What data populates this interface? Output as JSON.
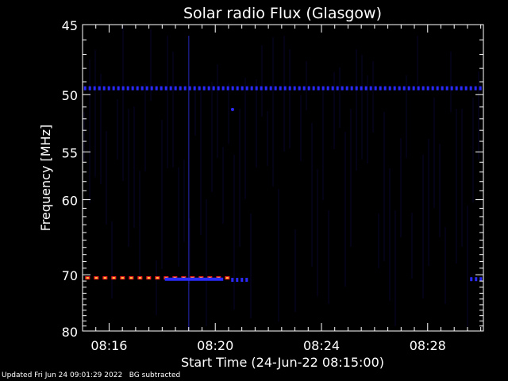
{
  "chart_data": {
    "type": "heatmap",
    "title": "Solar radio Flux (Glasgow)",
    "xlabel": "Start Time (24-Jun-22 08:15:00)",
    "ylabel": "Frequency [MHz]",
    "x_range_minutes": [
      0,
      15.1
    ],
    "ylim": [
      45,
      80
    ],
    "x_ticks": [
      {
        "label": "08:16",
        "minute": 1
      },
      {
        "label": "08:20",
        "minute": 5
      },
      {
        "label": "08:24",
        "minute": 9
      },
      {
        "label": "08:28",
        "minute": 13
      }
    ],
    "y_ticks": [
      45,
      50,
      55,
      60,
      70,
      80
    ],
    "series": [
      {
        "frequency_mhz": 49.5,
        "minute_start": 0.05,
        "minute_end": 15.05,
        "intensity": 0.35,
        "style": "dashed"
      },
      {
        "frequency_mhz": 70.5,
        "minute_start": 0.1,
        "minute_end": 5.5,
        "intensity": 1.0,
        "style": "dashed"
      },
      {
        "frequency_mhz": 70.7,
        "minute_start": 3.1,
        "minute_end": 5.3,
        "intensity": 0.45,
        "style": "solid"
      },
      {
        "frequency_mhz": 70.8,
        "minute_start": 5.6,
        "minute_end": 6.3,
        "intensity": 0.5,
        "style": "dashed"
      },
      {
        "frequency_mhz": 70.7,
        "minute_start": 14.6,
        "minute_end": 15.05,
        "intensity": 0.5,
        "style": "dashed"
      }
    ],
    "points": [
      {
        "minute": 5.65,
        "frequency_mhz": 51.2,
        "intensity": 0.4
      }
    ],
    "colors": {
      "background": "#000000",
      "faint": "#0a0a46",
      "low": "#2a2aff",
      "mid": "#a020c0",
      "high": "#ff2020",
      "peak": "#ffd040"
    },
    "grid": false,
    "legend": "none"
  },
  "footer": {
    "updated": "Updated Fri Jun 24 09:01:29 2022",
    "note": "BG subtracted"
  }
}
